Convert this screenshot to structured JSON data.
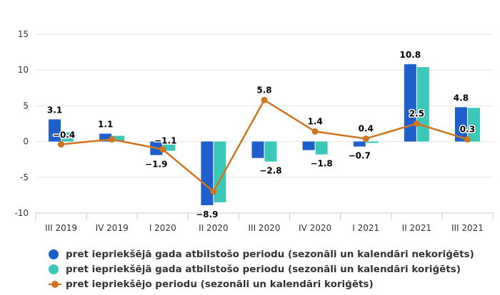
{
  "chart_data": {
    "type": "bar+line",
    "categories": [
      "III 2019",
      "IV 2019",
      "I 2020",
      "II 2020",
      "III 2020",
      "IV 2020",
      "I 2021",
      "II 2021",
      "III 2021"
    ],
    "ylim": [
      -10,
      15
    ],
    "yticks": [
      -10,
      -5,
      0,
      5,
      10,
      15
    ],
    "ytick_labels": [
      "-10",
      "-5",
      "0",
      "5",
      "10",
      "15"
    ],
    "grid": true,
    "series": [
      {
        "name": "pret iepriekšējā gada atbilstošo periodu (sezonāli un kalendāri nekoriģēts)",
        "kind": "bar",
        "color": "#1f5fcc",
        "values": [
          3.1,
          1.1,
          -1.9,
          -8.9,
          -2.3,
          -1.2,
          -0.7,
          10.8,
          4.8
        ],
        "labels": [
          "3.1",
          "1.1",
          "−1.9",
          "−8.9",
          "",
          "",
          "−0.7",
          "10.8",
          "4.8"
        ]
      },
      {
        "name": "pret iepriekšējā gada atbilstošo periodu (sezonāli un kalendāri koriģēts)",
        "kind": "bar",
        "color": "#3cc8b8",
        "values": [
          1.3,
          0.8,
          -1.3,
          -8.5,
          -2.8,
          -1.8,
          -0.2,
          10.4,
          4.7
        ],
        "labels": [
          "",
          "",
          "",
          "",
          "−2.8",
          "−1.8",
          "",
          "",
          ""
        ]
      },
      {
        "name": "pret iepriekšējo periodu (sezonāli un kalendāri koriģēts)",
        "kind": "line",
        "color": "#cf7520",
        "values": [
          -0.4,
          0.3,
          -1.1,
          -7.0,
          5.8,
          1.4,
          0.4,
          2.5,
          0.3
        ],
        "labels": [
          "−0.4",
          "",
          "−1.1",
          "",
          "5.8",
          "1.4",
          "0.4",
          "2.5",
          "0.3"
        ]
      }
    ]
  }
}
